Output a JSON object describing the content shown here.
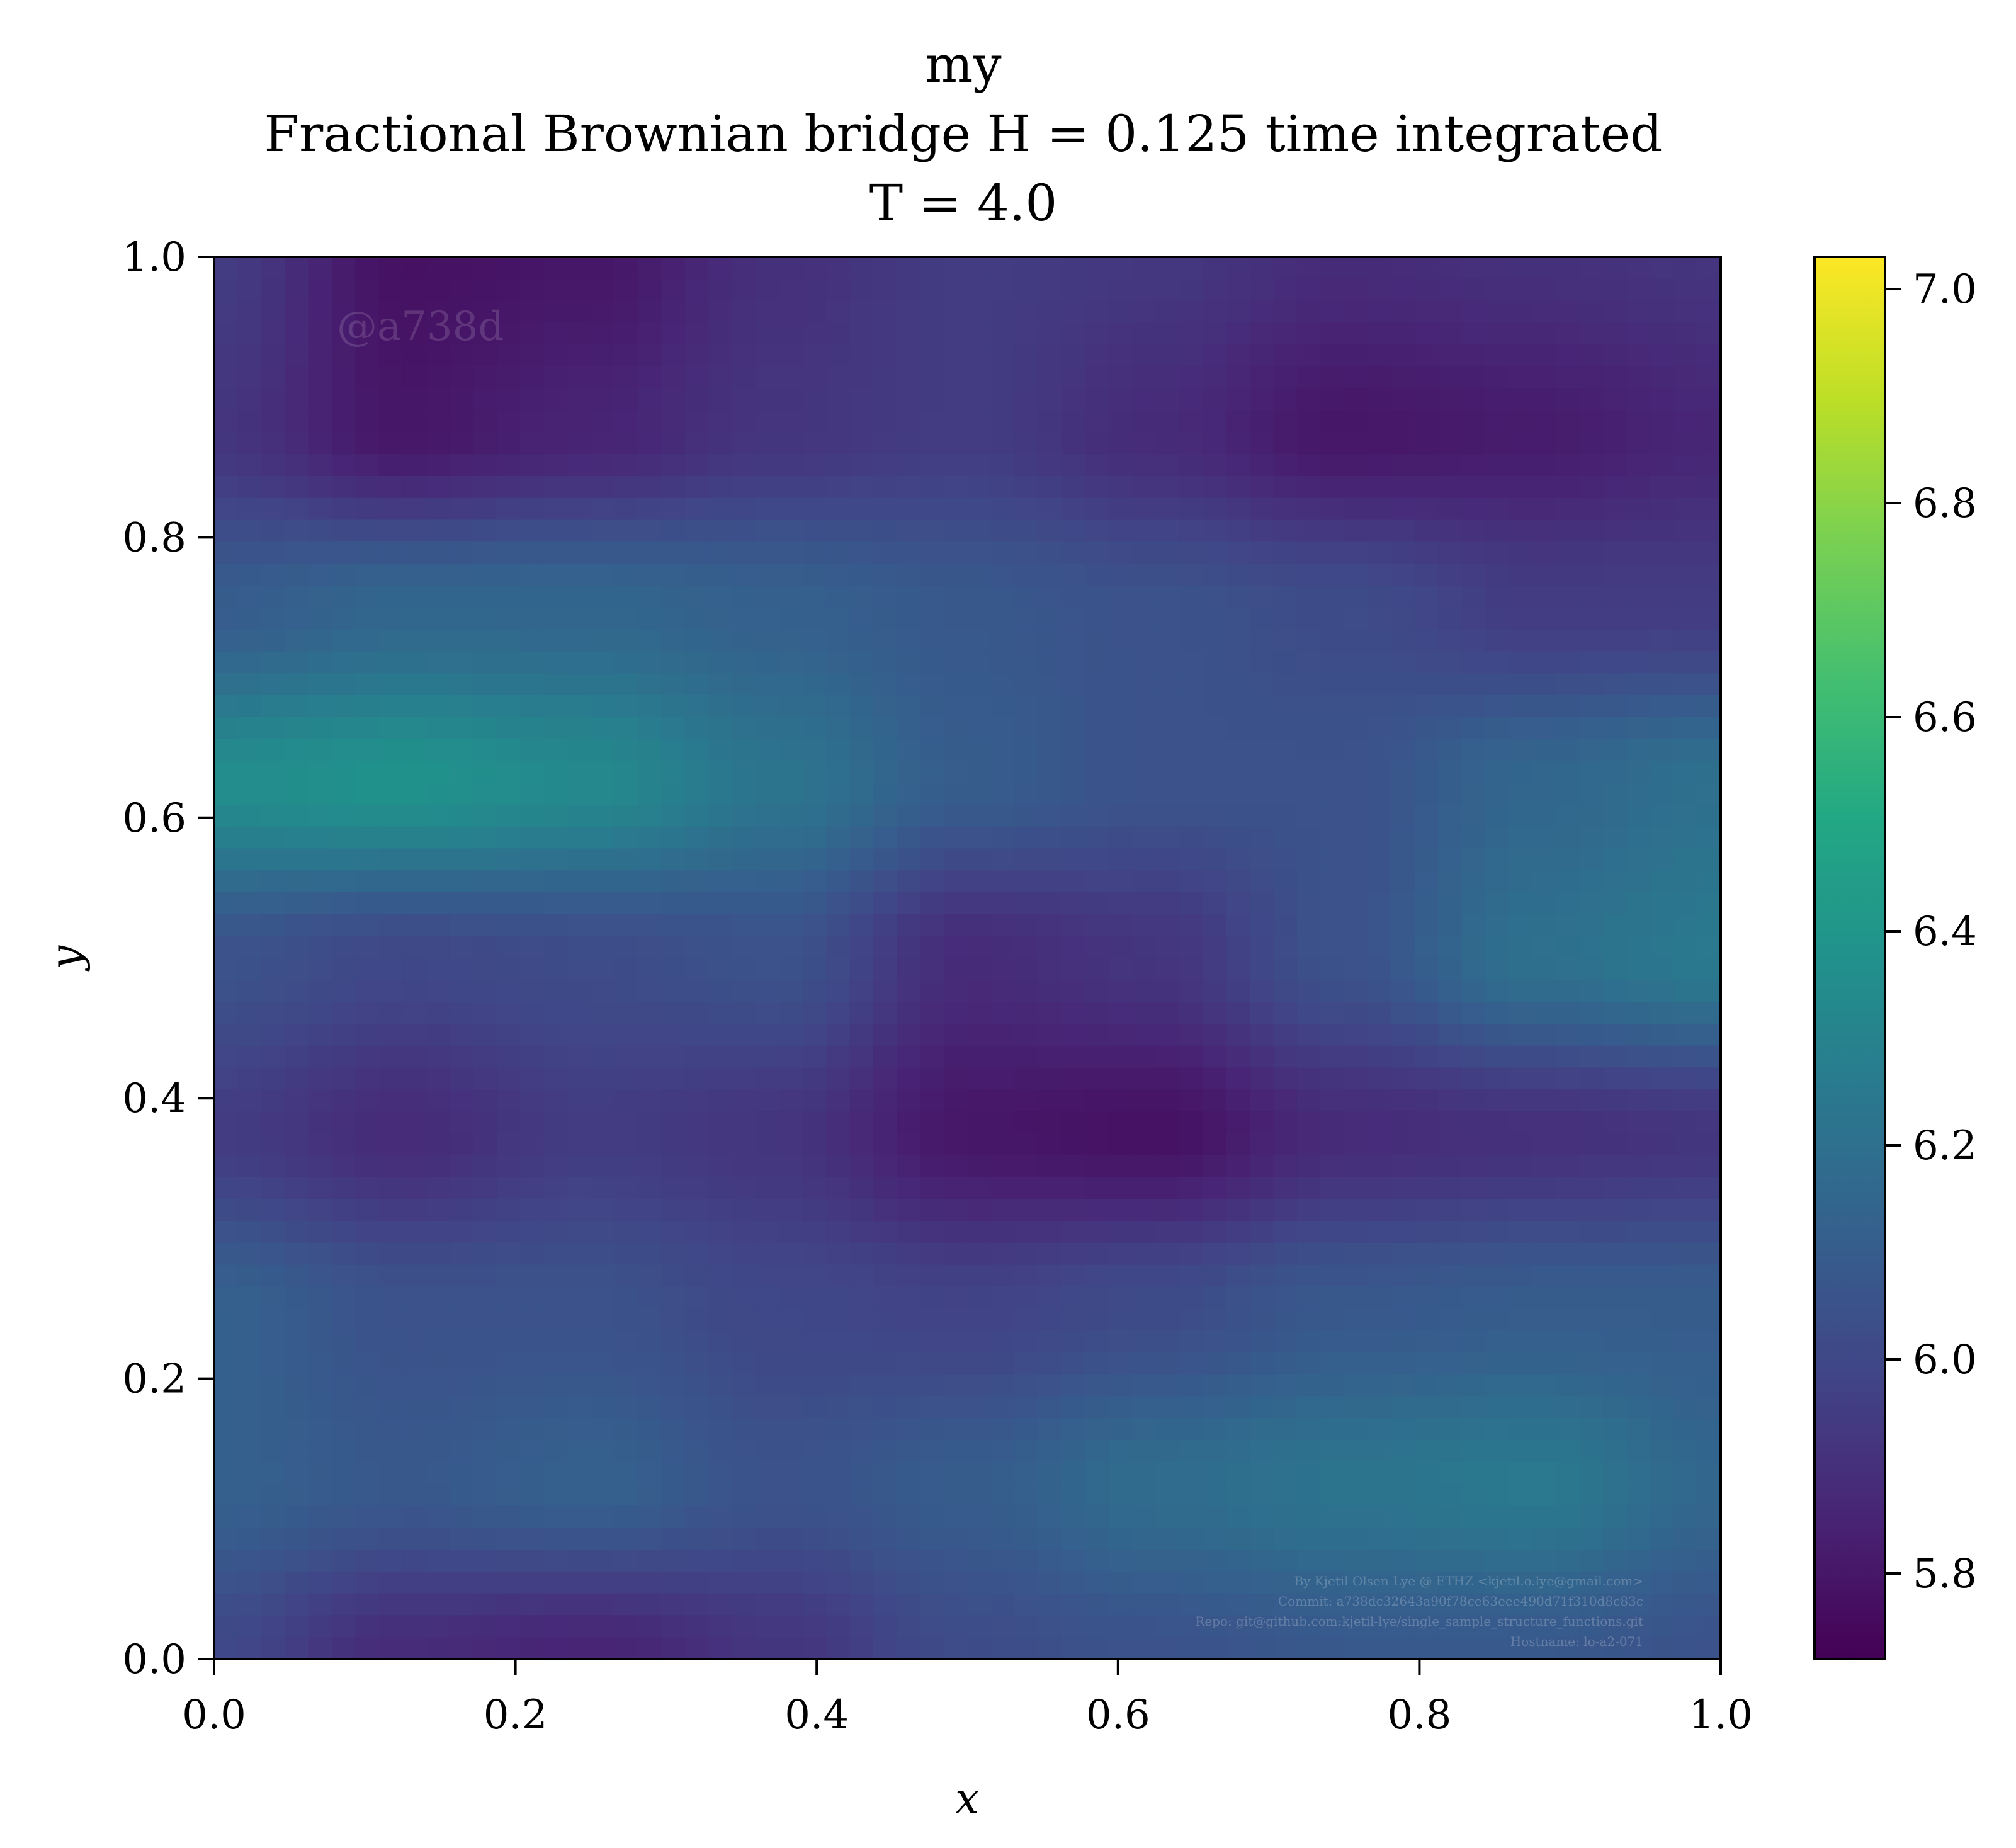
{
  "chart_data": {
    "type": "heatmap",
    "title_lines": [
      "my",
      "Fractional Brownian bridge H = 0.125 time integrated",
      "T = 4.0"
    ],
    "xlabel": "x",
    "ylabel": "y",
    "xlim": [
      0.0,
      1.0
    ],
    "ylim": [
      0.0,
      1.0
    ],
    "x_ticks": [
      "0.0",
      "0.2",
      "0.4",
      "0.6",
      "0.8",
      "1.0"
    ],
    "y_ticks": [
      "0.0",
      "0.2",
      "0.4",
      "0.6",
      "0.8",
      "1.0"
    ],
    "colormap": "viridis",
    "colorbar": {
      "vmin": 5.72,
      "vmax": 7.03,
      "ticks": [
        "5.8",
        "6.0",
        "6.2",
        "6.4",
        "6.6",
        "6.8",
        "7.0"
      ]
    },
    "grid": false,
    "field_description_values": {
      "x": [
        0.0,
        0.125,
        0.25,
        0.375,
        0.5,
        0.625,
        0.75,
        0.875,
        1.0
      ],
      "y": [
        1.0,
        0.875,
        0.75,
        0.625,
        0.5,
        0.375,
        0.25,
        0.125,
        0.0
      ],
      "z": [
        [
          5.95,
          5.78,
          5.8,
          5.9,
          5.95,
          5.93,
          5.88,
          5.9,
          5.92
        ],
        [
          5.92,
          5.8,
          5.85,
          5.92,
          5.95,
          5.88,
          5.8,
          5.82,
          5.86
        ],
        [
          6.1,
          6.15,
          6.15,
          6.12,
          6.08,
          6.05,
          6.02,
          5.95,
          5.95
        ],
        [
          6.35,
          6.38,
          6.33,
          6.22,
          6.1,
          6.05,
          6.05,
          6.15,
          6.2
        ],
        [
          6.05,
          6.0,
          6.02,
          6.05,
          5.88,
          5.92,
          6.05,
          6.2,
          6.25
        ],
        [
          5.95,
          5.88,
          5.95,
          5.92,
          5.8,
          5.78,
          5.88,
          5.9,
          5.92
        ],
        [
          6.12,
          6.05,
          6.05,
          6.0,
          5.98,
          6.02,
          6.08,
          6.1,
          6.1
        ],
        [
          6.12,
          6.08,
          6.12,
          6.05,
          6.1,
          6.18,
          6.22,
          6.25,
          6.15
        ],
        [
          6.0,
          5.88,
          5.85,
          5.92,
          6.02,
          6.05,
          6.08,
          6.08,
          6.05
        ]
      ]
    },
    "watermark": "@a738d",
    "credits": [
      "By Kjetil Olsen Lye @ ETHZ <kjetil.o.lye@gmail.com>",
      "Commit: a738dc32643a90f78ce63eee490d71f310d8c83c",
      "Repo: git@github.com:kjetil-lye/single_sample_structure_functions.git",
      "Hostname: lo-a2-071"
    ]
  }
}
